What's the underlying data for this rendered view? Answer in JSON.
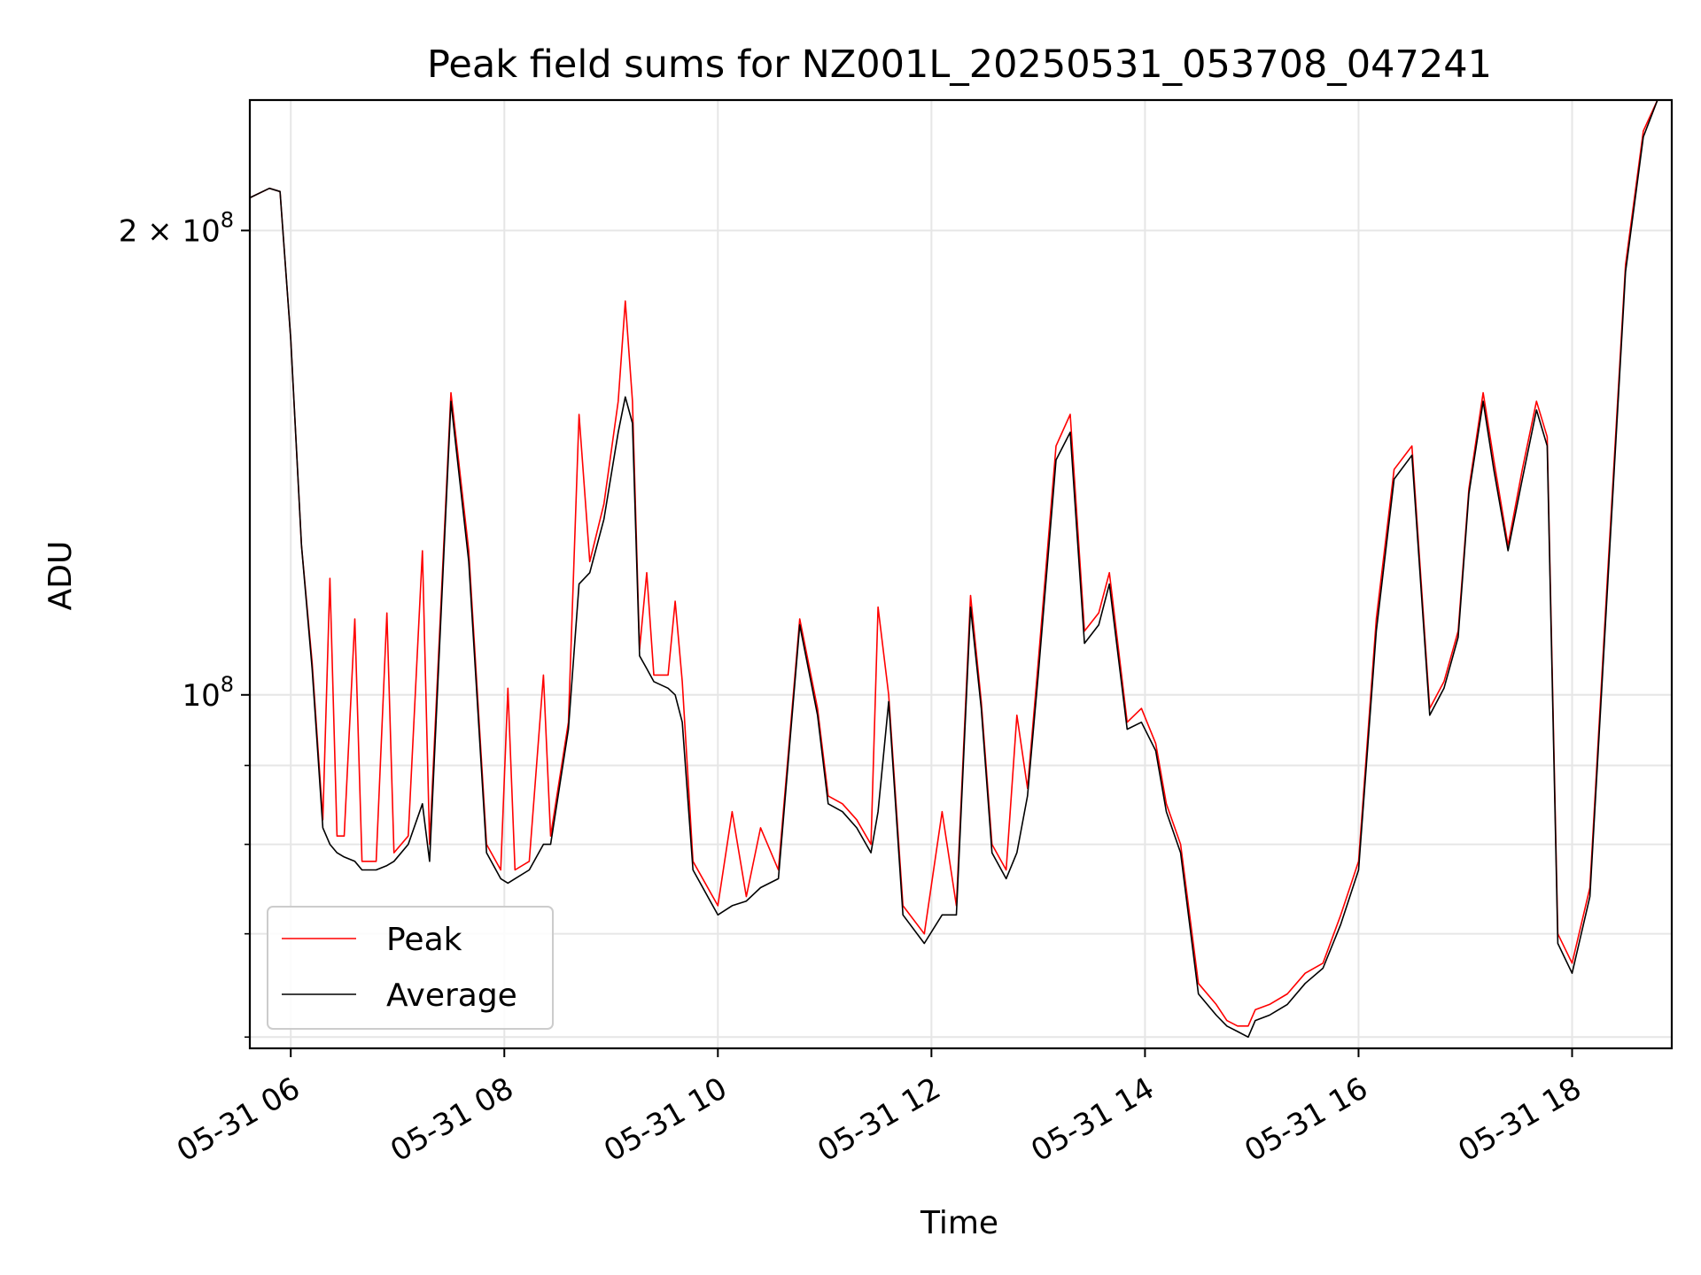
{
  "chart_data": {
    "type": "line",
    "title": "Peak field sums for NZ001L_20250531_053708_047241",
    "xlabel": "Time",
    "ylabel": "ADU",
    "yscale": "log",
    "xlim": [
      "2025-05-31 05:37",
      "2025-05-31 18:56"
    ],
    "ylim": [
      59000000,
      243000000
    ],
    "grid": true,
    "legend_position": "lower-left",
    "x_ticks": [
      {
        "time": "2025-05-31 06:00",
        "label": "05-31 06"
      },
      {
        "time": "2025-05-31 08:00",
        "label": "05-31 08"
      },
      {
        "time": "2025-05-31 10:00",
        "label": "05-31 10"
      },
      {
        "time": "2025-05-31 12:00",
        "label": "05-31 12"
      },
      {
        "time": "2025-05-31 14:00",
        "label": "05-31 14"
      },
      {
        "time": "2025-05-31 16:00",
        "label": "05-31 16"
      },
      {
        "time": "2025-05-31 18:00",
        "label": "05-31 18"
      }
    ],
    "y_ticks": [
      {
        "value": 100000000,
        "base": "10",
        "exp": "8",
        "coef": ""
      },
      {
        "value": 200000000,
        "base": "10",
        "exp": "8",
        "coef": "2 × "
      }
    ],
    "y_minor_ticks": [
      60000000,
      70000000,
      80000000,
      90000000
    ],
    "series": [
      {
        "name": "Peak",
        "color": "#ff0000",
        "points": [
          [
            "2025-05-31 05:37",
            210000000
          ],
          [
            "2025-05-31 05:48",
            213000000
          ],
          [
            "2025-05-31 05:54",
            212000000
          ],
          [
            "2025-05-31 06:00",
            170000000
          ],
          [
            "2025-05-31 06:06",
            125000000
          ],
          [
            "2025-05-31 06:12",
            105000000
          ],
          [
            "2025-05-31 06:18",
            83000000
          ],
          [
            "2025-05-31 06:22",
            119000000
          ],
          [
            "2025-05-31 06:26",
            81000000
          ],
          [
            "2025-05-31 06:30",
            81000000
          ],
          [
            "2025-05-31 06:36",
            112000000
          ],
          [
            "2025-05-31 06:40",
            78000000
          ],
          [
            "2025-05-31 06:48",
            78000000
          ],
          [
            "2025-05-31 06:54",
            113000000
          ],
          [
            "2025-05-31 06:58",
            79000000
          ],
          [
            "2025-05-31 07:06",
            81000000
          ],
          [
            "2025-05-31 07:14",
            124000000
          ],
          [
            "2025-05-31 07:18",
            80000000
          ],
          [
            "2025-05-31 07:30",
            157000000
          ],
          [
            "2025-05-31 07:40",
            124000000
          ],
          [
            "2025-05-31 07:50",
            80000000
          ],
          [
            "2025-05-31 07:58",
            77000000
          ],
          [
            "2025-05-31 08:02",
            101000000
          ],
          [
            "2025-05-31 08:06",
            77000000
          ],
          [
            "2025-05-31 08:14",
            78000000
          ],
          [
            "2025-05-31 08:22",
            103000000
          ],
          [
            "2025-05-31 08:26",
            81000000
          ],
          [
            "2025-05-31 08:36",
            96000000
          ],
          [
            "2025-05-31 08:42",
            152000000
          ],
          [
            "2025-05-31 08:48",
            122000000
          ],
          [
            "2025-05-31 08:56",
            133000000
          ],
          [
            "2025-05-31 09:04",
            155000000
          ],
          [
            "2025-05-31 09:08",
            180000000
          ],
          [
            "2025-05-31 09:12",
            155000000
          ],
          [
            "2025-05-31 09:16",
            107000000
          ],
          [
            "2025-05-31 09:20",
            120000000
          ],
          [
            "2025-05-31 09:24",
            103000000
          ],
          [
            "2025-05-31 09:32",
            103000000
          ],
          [
            "2025-05-31 09:36",
            115000000
          ],
          [
            "2025-05-31 09:40",
            102000000
          ],
          [
            "2025-05-31 09:46",
            78000000
          ],
          [
            "2025-05-31 10:00",
            73000000
          ],
          [
            "2025-05-31 10:08",
            84000000
          ],
          [
            "2025-05-31 10:16",
            74000000
          ],
          [
            "2025-05-31 10:24",
            82000000
          ],
          [
            "2025-05-31 10:34",
            77000000
          ],
          [
            "2025-05-31 10:46",
            112000000
          ],
          [
            "2025-05-31 10:56",
            98000000
          ],
          [
            "2025-05-31 11:02",
            86000000
          ],
          [
            "2025-05-31 11:10",
            85000000
          ],
          [
            "2025-05-31 11:18",
            83000000
          ],
          [
            "2025-05-31 11:26",
            80000000
          ],
          [
            "2025-05-31 11:30",
            114000000
          ],
          [
            "2025-05-31 11:36",
            100000000
          ],
          [
            "2025-05-31 11:44",
            73000000
          ],
          [
            "2025-05-31 11:56",
            70000000
          ],
          [
            "2025-05-31 12:06",
            84000000
          ],
          [
            "2025-05-31 12:14",
            73000000
          ],
          [
            "2025-05-31 12:22",
            116000000
          ],
          [
            "2025-05-31 12:28",
            99000000
          ],
          [
            "2025-05-31 12:34",
            80000000
          ],
          [
            "2025-05-31 12:42",
            77000000
          ],
          [
            "2025-05-31 12:48",
            97000000
          ],
          [
            "2025-05-31 12:54",
            87000000
          ],
          [
            "2025-05-31 13:00",
            105000000
          ],
          [
            "2025-05-31 13:10",
            145000000
          ],
          [
            "2025-05-31 13:18",
            152000000
          ],
          [
            "2025-05-31 13:26",
            110000000
          ],
          [
            "2025-05-31 13:34",
            113000000
          ],
          [
            "2025-05-31 13:40",
            120000000
          ],
          [
            "2025-05-31 13:50",
            96000000
          ],
          [
            "2025-05-31 13:58",
            98000000
          ],
          [
            "2025-05-31 14:06",
            93000000
          ],
          [
            "2025-05-31 14:12",
            85000000
          ],
          [
            "2025-05-31 14:20",
            80000000
          ],
          [
            "2025-05-31 14:30",
            65000000
          ],
          [
            "2025-05-31 14:40",
            63000000
          ],
          [
            "2025-05-31 14:46",
            61500000
          ],
          [
            "2025-05-31 14:52",
            61000000
          ],
          [
            "2025-05-31 14:58",
            61000000
          ],
          [
            "2025-05-31 15:02",
            62500000
          ],
          [
            "2025-05-31 15:10",
            63000000
          ],
          [
            "2025-05-31 15:20",
            64000000
          ],
          [
            "2025-05-31 15:30",
            66000000
          ],
          [
            "2025-05-31 15:40",
            67000000
          ],
          [
            "2025-05-31 15:50",
            72000000
          ],
          [
            "2025-05-31 16:00",
            78000000
          ],
          [
            "2025-05-31 16:10",
            112000000
          ],
          [
            "2025-05-31 16:20",
            140000000
          ],
          [
            "2025-05-31 16:30",
            145000000
          ],
          [
            "2025-05-31 16:40",
            98000000
          ],
          [
            "2025-05-31 16:48",
            102000000
          ],
          [
            "2025-05-31 16:56",
            110000000
          ],
          [
            "2025-05-31 17:02",
            136000000
          ],
          [
            "2025-05-31 17:10",
            157000000
          ],
          [
            "2025-05-31 17:16",
            142000000
          ],
          [
            "2025-05-31 17:24",
            125000000
          ],
          [
            "2025-05-31 17:32",
            140000000
          ],
          [
            "2025-05-31 17:40",
            155000000
          ],
          [
            "2025-05-31 17:46",
            147000000
          ],
          [
            "2025-05-31 17:52",
            70000000
          ],
          [
            "2025-05-31 18:00",
            67000000
          ],
          [
            "2025-05-31 18:10",
            75000000
          ],
          [
            "2025-05-31 18:20",
            120000000
          ],
          [
            "2025-05-31 18:30",
            190000000
          ],
          [
            "2025-05-31 18:40",
            232000000
          ],
          [
            "2025-05-31 18:48",
            243000000
          ],
          [
            "2025-05-31 18:56",
            243000000
          ]
        ]
      },
      {
        "name": "Average",
        "color": "#000000",
        "points": [
          [
            "2025-05-31 05:37",
            210000000
          ],
          [
            "2025-05-31 05:48",
            213000000
          ],
          [
            "2025-05-31 05:54",
            212000000
          ],
          [
            "2025-05-31 06:00",
            170000000
          ],
          [
            "2025-05-31 06:06",
            125000000
          ],
          [
            "2025-05-31 06:12",
            104000000
          ],
          [
            "2025-05-31 06:18",
            82000000
          ],
          [
            "2025-05-31 06:22",
            80000000
          ],
          [
            "2025-05-31 06:26",
            79000000
          ],
          [
            "2025-05-31 06:30",
            78500000
          ],
          [
            "2025-05-31 06:36",
            78000000
          ],
          [
            "2025-05-31 06:40",
            77000000
          ],
          [
            "2025-05-31 06:48",
            77000000
          ],
          [
            "2025-05-31 06:54",
            77500000
          ],
          [
            "2025-05-31 06:58",
            78000000
          ],
          [
            "2025-05-31 07:06",
            80000000
          ],
          [
            "2025-05-31 07:14",
            85000000
          ],
          [
            "2025-05-31 07:18",
            78000000
          ],
          [
            "2025-05-31 07:30",
            155000000
          ],
          [
            "2025-05-31 07:40",
            122000000
          ],
          [
            "2025-05-31 07:50",
            79000000
          ],
          [
            "2025-05-31 07:58",
            76000000
          ],
          [
            "2025-05-31 08:02",
            75500000
          ],
          [
            "2025-05-31 08:06",
            76000000
          ],
          [
            "2025-05-31 08:14",
            77000000
          ],
          [
            "2025-05-31 08:22",
            80000000
          ],
          [
            "2025-05-31 08:26",
            80000000
          ],
          [
            "2025-05-31 08:36",
            95000000
          ],
          [
            "2025-05-31 08:42",
            118000000
          ],
          [
            "2025-05-31 08:48",
            120000000
          ],
          [
            "2025-05-31 08:56",
            130000000
          ],
          [
            "2025-05-31 09:04",
            148000000
          ],
          [
            "2025-05-31 09:08",
            156000000
          ],
          [
            "2025-05-31 09:12",
            150000000
          ],
          [
            "2025-05-31 09:16",
            106000000
          ],
          [
            "2025-05-31 09:20",
            104000000
          ],
          [
            "2025-05-31 09:24",
            102000000
          ],
          [
            "2025-05-31 09:32",
            101000000
          ],
          [
            "2025-05-31 09:36",
            100000000
          ],
          [
            "2025-05-31 09:40",
            96000000
          ],
          [
            "2025-05-31 09:46",
            77000000
          ],
          [
            "2025-05-31 10:00",
            72000000
          ],
          [
            "2025-05-31 10:08",
            73000000
          ],
          [
            "2025-05-31 10:16",
            73500000
          ],
          [
            "2025-05-31 10:24",
            75000000
          ],
          [
            "2025-05-31 10:34",
            76000000
          ],
          [
            "2025-05-31 10:46",
            111000000
          ],
          [
            "2025-05-31 10:56",
            97000000
          ],
          [
            "2025-05-31 11:02",
            85000000
          ],
          [
            "2025-05-31 11:10",
            84000000
          ],
          [
            "2025-05-31 11:18",
            82000000
          ],
          [
            "2025-05-31 11:26",
            79000000
          ],
          [
            "2025-05-31 11:30",
            84000000
          ],
          [
            "2025-05-31 11:36",
            99000000
          ],
          [
            "2025-05-31 11:44",
            72000000
          ],
          [
            "2025-05-31 11:56",
            69000000
          ],
          [
            "2025-05-31 12:06",
            72000000
          ],
          [
            "2025-05-31 12:14",
            72000000
          ],
          [
            "2025-05-31 12:22",
            114000000
          ],
          [
            "2025-05-31 12:28",
            98000000
          ],
          [
            "2025-05-31 12:34",
            79000000
          ],
          [
            "2025-05-31 12:42",
            76000000
          ],
          [
            "2025-05-31 12:48",
            79000000
          ],
          [
            "2025-05-31 12:54",
            86000000
          ],
          [
            "2025-05-31 13:00",
            103000000
          ],
          [
            "2025-05-31 13:10",
            142000000
          ],
          [
            "2025-05-31 13:18",
            148000000
          ],
          [
            "2025-05-31 13:26",
            108000000
          ],
          [
            "2025-05-31 13:34",
            111000000
          ],
          [
            "2025-05-31 13:40",
            118000000
          ],
          [
            "2025-05-31 13:50",
            95000000
          ],
          [
            "2025-05-31 13:58",
            96000000
          ],
          [
            "2025-05-31 14:06",
            92000000
          ],
          [
            "2025-05-31 14:12",
            84000000
          ],
          [
            "2025-05-31 14:20",
            79000000
          ],
          [
            "2025-05-31 14:30",
            64000000
          ],
          [
            "2025-05-31 14:40",
            62000000
          ],
          [
            "2025-05-31 14:46",
            61000000
          ],
          [
            "2025-05-31 14:52",
            60500000
          ],
          [
            "2025-05-31 14:58",
            60000000
          ],
          [
            "2025-05-31 15:02",
            61500000
          ],
          [
            "2025-05-31 15:10",
            62000000
          ],
          [
            "2025-05-31 15:20",
            63000000
          ],
          [
            "2025-05-31 15:30",
            65000000
          ],
          [
            "2025-05-31 15:40",
            66500000
          ],
          [
            "2025-05-31 15:50",
            71000000
          ],
          [
            "2025-05-31 16:00",
            77000000
          ],
          [
            "2025-05-31 16:10",
            110000000
          ],
          [
            "2025-05-31 16:20",
            138000000
          ],
          [
            "2025-05-31 16:30",
            143000000
          ],
          [
            "2025-05-31 16:40",
            97000000
          ],
          [
            "2025-05-31 16:48",
            101000000
          ],
          [
            "2025-05-31 16:56",
            109000000
          ],
          [
            "2025-05-31 17:02",
            135000000
          ],
          [
            "2025-05-31 17:10",
            155000000
          ],
          [
            "2025-05-31 17:16",
            140000000
          ],
          [
            "2025-05-31 17:24",
            124000000
          ],
          [
            "2025-05-31 17:32",
            138000000
          ],
          [
            "2025-05-31 17:40",
            153000000
          ],
          [
            "2025-05-31 17:46",
            145000000
          ],
          [
            "2025-05-31 17:52",
            69000000
          ],
          [
            "2025-05-31 18:00",
            66000000
          ],
          [
            "2025-05-31 18:10",
            74000000
          ],
          [
            "2025-05-31 18:20",
            118000000
          ],
          [
            "2025-05-31 18:30",
            188000000
          ],
          [
            "2025-05-31 18:40",
            230000000
          ],
          [
            "2025-05-31 18:48",
            243000000
          ],
          [
            "2025-05-31 18:56",
            243000000
          ]
        ]
      }
    ]
  }
}
